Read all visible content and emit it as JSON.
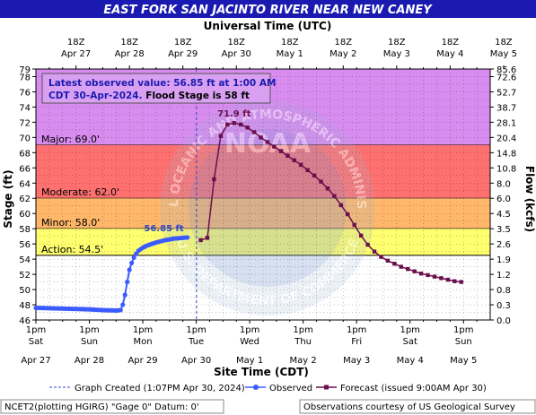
{
  "title": "EAST FORK SAN JACINTO RIVER NEAR NEW CANEY",
  "top_axis_label": "Universal Time (UTC)",
  "bottom_axis_label": "Site Time (CDT)",
  "left_axis_label": "Stage (ft)",
  "right_axis_label": "Flow (kcfs)",
  "top_ticks": [
    {
      "h": 18,
      "top": "18Z",
      "bottom": "Apr 27"
    },
    {
      "h": 42,
      "top": "18Z",
      "bottom": "Apr 28"
    },
    {
      "h": 66,
      "top": "18Z",
      "bottom": "Apr 29"
    },
    {
      "h": 90,
      "top": "18Z",
      "bottom": "Apr 30"
    },
    {
      "h": 114,
      "top": "18Z",
      "bottom": "May  1"
    },
    {
      "h": 138,
      "top": "18Z",
      "bottom": "May  2"
    },
    {
      "h": 162,
      "top": "18Z",
      "bottom": "May  3"
    },
    {
      "h": 186,
      "top": "18Z",
      "bottom": "May  4"
    },
    {
      "h": 210,
      "top": "18Z",
      "bottom": "May  5"
    }
  ],
  "bottom_ticks": [
    {
      "h": 0,
      "time": "1pm",
      "day": "Sat",
      "date": "Apr 27"
    },
    {
      "h": 24,
      "time": "1pm",
      "day": "Sun",
      "date": "Apr 28"
    },
    {
      "h": 48,
      "time": "1pm",
      "day": "Mon",
      "date": "Apr 29"
    },
    {
      "h": 72,
      "time": "1pm",
      "day": "Tue",
      "date": "Apr 30"
    },
    {
      "h": 96,
      "time": "1pm",
      "day": "Wed",
      "date": "May 1"
    },
    {
      "h": 120,
      "time": "1pm",
      "day": "Thu",
      "date": "May 2"
    },
    {
      "h": 144,
      "time": "1pm",
      "day": "Fri",
      "date": "May 3"
    },
    {
      "h": 168,
      "time": "1pm",
      "day": "Sat",
      "date": "May 4"
    },
    {
      "h": 192,
      "time": "1pm",
      "day": "Sun",
      "date": "May 5"
    }
  ],
  "flow_ticks": [
    {
      "stage": 79,
      "label": "85.6"
    },
    {
      "stage": 78,
      "label": "72.6"
    },
    {
      "stage": 76,
      "label": "52.7"
    },
    {
      "stage": 74,
      "label": "38.7"
    },
    {
      "stage": 72,
      "label": "28.1"
    },
    {
      "stage": 70,
      "label": "20.4"
    },
    {
      "stage": 68,
      "label": "14.8"
    },
    {
      "stage": 66,
      "label": "10.8"
    },
    {
      "stage": 64,
      "label": "8.0"
    },
    {
      "stage": 62,
      "label": "6.0"
    },
    {
      "stage": 60,
      "label": "4.5"
    },
    {
      "stage": 58,
      "label": "3.5"
    },
    {
      "stage": 56,
      "label": "2.6"
    },
    {
      "stage": 54,
      "label": "1.9"
    },
    {
      "stage": 52,
      "label": "1.2"
    },
    {
      "stage": 50,
      "label": "0.8"
    },
    {
      "stage": 48,
      "label": "0.3"
    },
    {
      "stage": 46,
      "label": "0.0"
    }
  ],
  "flood_categories": [
    {
      "name": "Major",
      "label": "Major: 69.0'",
      "from": 69.0,
      "to": 79,
      "color": "#d98cf0"
    },
    {
      "name": "Moderate",
      "label": "Moderate: 62.0'",
      "from": 62.0,
      "to": 69.0,
      "color": "#ff7070"
    },
    {
      "name": "Minor",
      "label": "Minor: 58.0'",
      "from": 58.0,
      "to": 62.0,
      "color": "#ffb86a"
    },
    {
      "name": "Action",
      "label": "Action: 54.5'",
      "from": 54.5,
      "to": 58.0,
      "color": "#ffff70"
    }
  ],
  "info_box": {
    "line1": "Latest observed value: 56.85 ft at 1:00 AM",
    "line2a": "CDT 30-Apr-2024.",
    "line2b": " Flood Stage is 58 ft"
  },
  "annotations": {
    "observed_last": "56.85 ft",
    "forecast_peak": "71.9 ft"
  },
  "legend": {
    "created": "Graph Created (1:07PM Apr 30, 2024)",
    "observed": "Observed",
    "forecast": "Forecast (issued 9:00AM Apr 30)"
  },
  "footer": {
    "left": "NCET2(plotting HGIRG) \"Gage 0\" Datum: 0'",
    "right": "Observations courtesy of US Geological Survey"
  },
  "watermark": {
    "top_text": "NATIONAL OCEANIC AND ATMOSPHERIC ADMINISTRATION",
    "bottom_text": "U.S. DEPARTMENT OF COMMERCE",
    "center_text": "NOAA"
  },
  "colors": {
    "title_bar": "#1a1ab0",
    "observed": "#3b5bff",
    "forecast": "#6a0f4e",
    "info_box_bg": "#d9a0f2",
    "info_box_text": "#1a1ab0",
    "background_plot": "#ffffff"
  },
  "chart_data": {
    "type": "line",
    "x_axis": "hours after 1pm CDT Sat Apr 27",
    "xlim": [
      0,
      204
    ],
    "ylim": [
      46,
      79
    ],
    "y_ticks": [
      46,
      48,
      50,
      52,
      54,
      56,
      58,
      60,
      62,
      64,
      66,
      68,
      70,
      72,
      74,
      76,
      78,
      79
    ],
    "graph_created_hour": 72.1,
    "series": [
      {
        "name": "Observed",
        "x": [
          0,
          6,
          12,
          18,
          24,
          30,
          36,
          38,
          39,
          40,
          41,
          42,
          43,
          44,
          45,
          46,
          48,
          50,
          52,
          54,
          56,
          58,
          60,
          62,
          64,
          66,
          68
        ],
        "y": [
          47.6,
          47.55,
          47.5,
          47.45,
          47.4,
          47.3,
          47.25,
          47.3,
          48.0,
          49.3,
          51.0,
          52.6,
          53.5,
          54.2,
          54.7,
          55.1,
          55.5,
          55.8,
          56.0,
          56.2,
          56.35,
          56.5,
          56.6,
          56.7,
          56.75,
          56.8,
          56.85
        ]
      },
      {
        "name": "Forecast (issued 9:00AM Apr 30)",
        "x": [
          74,
          77,
          80,
          83,
          86,
          89,
          92,
          95,
          98,
          101,
          104,
          107,
          110,
          113,
          116,
          119,
          122,
          125,
          128,
          131,
          134,
          137,
          140,
          143,
          146,
          149,
          152,
          155,
          158,
          161,
          164,
          167,
          170,
          173,
          176,
          179,
          182,
          185,
          188,
          191
        ],
        "y": [
          56.5,
          56.8,
          64.5,
          70.2,
          71.7,
          71.9,
          71.7,
          71.3,
          70.7,
          70.0,
          69.4,
          68.8,
          68.2,
          67.6,
          67.0,
          66.4,
          65.7,
          65.0,
          64.2,
          63.3,
          62.3,
          61.1,
          59.9,
          58.5,
          57.1,
          55.9,
          55.0,
          54.3,
          53.8,
          53.4,
          53.0,
          52.7,
          52.4,
          52.1,
          51.9,
          51.7,
          51.5,
          51.3,
          51.1,
          51.0
        ]
      }
    ],
    "peak": {
      "x": 89,
      "y": 71.9,
      "label": "71.9 ft"
    },
    "latest_observed": {
      "x": 68,
      "y": 56.85,
      "label": "56.85 ft"
    }
  }
}
